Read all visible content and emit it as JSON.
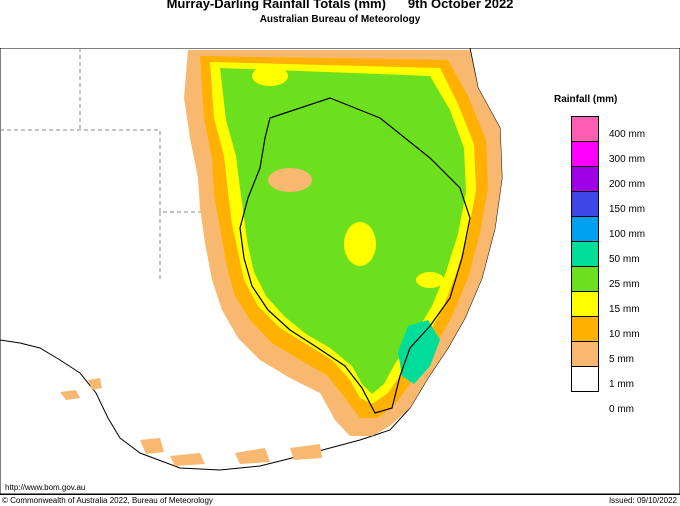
{
  "header": {
    "title": "Murray-Darling Rainfall Totals (mm)",
    "date": "9th October 2022",
    "subtitle": "Australian Bureau of Meteorology"
  },
  "legend": {
    "title": "Rainfall (mm)",
    "items": [
      {
        "label": "400 mm",
        "color": "#ff5fb3"
      },
      {
        "label": "300 mm",
        "color": "#ff00ff"
      },
      {
        "label": "200 mm",
        "color": "#a000e6"
      },
      {
        "label": "150 mm",
        "color": "#3e46e8"
      },
      {
        "label": "100 mm",
        "color": "#00a0f0"
      },
      {
        "label": "50 mm",
        "color": "#00dc9a"
      },
      {
        "label": "25 mm",
        "color": "#6ce01e"
      },
      {
        "label": "15 mm",
        "color": "#ffff00"
      },
      {
        "label": "10 mm",
        "color": "#ffb000"
      },
      {
        "label": "5 mm",
        "color": "#f8b870"
      },
      {
        "label": "1 mm",
        "color": "#ffffff"
      },
      {
        "label": "0 mm",
        "color": ""
      }
    ]
  },
  "footer": {
    "url": "http://www.bom.gov.au",
    "copyright": "© Commonwealth of Australia 2022, Bureau of Meteorology",
    "issued": "Issued: 09/10/2022"
  }
}
